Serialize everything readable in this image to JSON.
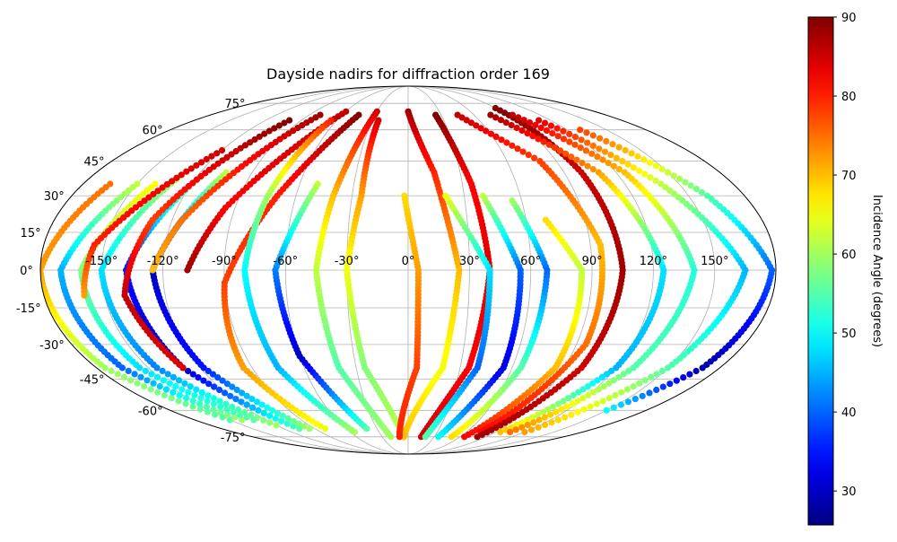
{
  "chart_data": {
    "type": "scatter",
    "projection": "mollweide",
    "title": "Dayside nadirs for diffraction order 169",
    "grid": true,
    "lon_ticks": [
      "-150°",
      "-120°",
      "-90°",
      "-60°",
      "-30°",
      "0°",
      "30°",
      "60°",
      "90°",
      "120°",
      "150°"
    ],
    "lon_tick_values": [
      -150,
      -120,
      -90,
      -60,
      -30,
      0,
      30,
      60,
      90,
      120,
      150
    ],
    "lat_ticks": [
      "75°",
      "60°",
      "45°",
      "30°",
      "15°",
      "0°",
      "-15°",
      "-30°",
      "-45°",
      "-60°",
      "-75°"
    ],
    "lat_tick_values": [
      75,
      60,
      45,
      30,
      15,
      0,
      -15,
      -30,
      -45,
      -60,
      -75
    ],
    "colormap": "jet",
    "colorbar": {
      "label": "Incidence Angle (degrees)",
      "range": [
        25.7,
        90
      ],
      "ticks": [
        "30",
        "40",
        "50",
        "60",
        "70",
        "80",
        "90"
      ],
      "tick_values": [
        30,
        40,
        50,
        60,
        70,
        80,
        90
      ]
    },
    "tracks_note_fields": [
      "longitude",
      "latitude",
      "incidence"
    ],
    "tracks": [
      [
        [
          -165,
          35,
          75
        ],
        [
          -180,
          0,
          72
        ],
        [
          -175,
          -40,
          60
        ],
        [
          -150,
          -65,
          55
        ]
      ],
      [
        [
          -150,
          35,
          62
        ],
        [
          -170,
          0,
          45
        ],
        [
          -165,
          -40,
          40
        ],
        [
          -140,
          -65,
          60
        ]
      ],
      [
        [
          -140,
          35,
          66
        ],
        [
          -160,
          0,
          58
        ],
        [
          -155,
          -40,
          48
        ],
        [
          -130,
          -65,
          55
        ]
      ],
      [
        [
          -130,
          38,
          60
        ],
        [
          -150,
          0,
          48
        ],
        [
          -145,
          -40,
          42
        ],
        [
          -120,
          -68,
          60
        ]
      ],
      [
        [
          -118,
          38,
          58
        ],
        [
          -138,
          0,
          35
        ],
        [
          -130,
          -40,
          30
        ],
        [
          -105,
          -70,
          55
        ]
      ],
      [
        [
          -105,
          40,
          62
        ],
        [
          -125,
          0,
          30
        ],
        [
          -118,
          -40,
          35
        ],
        [
          -95,
          -70,
          60
        ]
      ],
      [
        [
          -120,
          50,
          85
        ],
        [
          -155,
          10,
          80
        ],
        [
          -160,
          -10,
          72
        ]
      ],
      [
        [
          -100,
          65,
          90
        ],
        [
          -130,
          20,
          78
        ],
        [
          -140,
          -10,
          86
        ],
        [
          -130,
          -40,
          84
        ]
      ],
      [
        [
          -80,
          68,
          88
        ],
        [
          -115,
          20,
          75
        ],
        [
          -125,
          0,
          70
        ]
      ],
      [
        [
          -60,
          70,
          86
        ],
        [
          -95,
          25,
          82
        ],
        [
          -108,
          0,
          88
        ]
      ],
      [
        [
          -45,
          68,
          90
        ],
        [
          -70,
          30,
          80
        ],
        [
          -90,
          -5,
          78
        ],
        [
          -95,
          -40,
          72
        ],
        [
          -80,
          -70,
          65
        ]
      ],
      [
        [
          -65,
          65,
          80
        ],
        [
          -75,
          30,
          60
        ],
        [
          -80,
          0,
          50
        ],
        [
          -75,
          -40,
          45
        ],
        [
          -55,
          -72,
          60
        ]
      ],
      [
        [
          -50,
          35,
          62
        ],
        [
          -65,
          0,
          42
        ],
        [
          -60,
          -35,
          30
        ],
        [
          -40,
          -70,
          55
        ]
      ],
      [
        [
          -30,
          70,
          85
        ],
        [
          -40,
          30,
          70
        ],
        [
          -45,
          0,
          62
        ],
        [
          -40,
          -40,
          55
        ],
        [
          -20,
          -75,
          60
        ]
      ],
      [
        [
          -25,
          65,
          85
        ],
        [
          -25,
          30,
          72
        ],
        [
          -30,
          0,
          65
        ],
        [
          -25,
          -40,
          58
        ],
        [
          -5,
          -75,
          62
        ]
      ],
      [
        [
          0,
          70,
          88
        ],
        [
          15,
          40,
          80
        ],
        [
          25,
          0,
          70
        ],
        [
          20,
          -40,
          65
        ],
        [
          -5,
          -75,
          70
        ]
      ],
      [
        [
          25,
          68,
          90
        ],
        [
          35,
          35,
          82
        ],
        [
          40,
          0,
          84
        ],
        [
          35,
          -40,
          82
        ],
        [
          15,
          -75,
          85
        ]
      ],
      [
        [
          -2,
          30,
          68
        ],
        [
          5,
          0,
          72
        ],
        [
          5,
          -40,
          78
        ],
        [
          -10,
          -75,
          80
        ]
      ],
      [
        [
          20,
          30,
          65
        ],
        [
          40,
          0,
          48
        ],
        [
          40,
          -40,
          40
        ],
        [
          20,
          -75,
          55
        ]
      ],
      [
        [
          40,
          30,
          62
        ],
        [
          55,
          0,
          40
        ],
        [
          55,
          -40,
          32
        ],
        [
          35,
          -75,
          50
        ]
      ],
      [
        [
          55,
          28,
          60
        ],
        [
          68,
          0,
          40
        ],
        [
          65,
          -40,
          55
        ],
        [
          50,
          -75,
          68
        ]
      ],
      [
        [
          70,
          20,
          68
        ],
        [
          85,
          0,
          62
        ],
        [
          85,
          -40,
          70
        ],
        [
          65,
          -75,
          82
        ]
      ],
      [
        [
          45,
          68,
          86
        ],
        [
          80,
          45,
          78
        ],
        [
          95,
          10,
          70
        ],
        [
          95,
          -30,
          75
        ],
        [
          75,
          -72,
          82
        ]
      ],
      [
        [
          90,
          72,
          90
        ],
        [
          100,
          40,
          85
        ],
        [
          105,
          0,
          88
        ],
        [
          100,
          -40,
          85
        ],
        [
          80,
          -75,
          88
        ]
      ],
      [
        [
          75,
          68,
          88
        ],
        [
          110,
          40,
          72
        ],
        [
          125,
          0,
          48
        ],
        [
          120,
          -40,
          45
        ],
        [
          95,
          -72,
          70
        ]
      ],
      [
        [
          95,
          68,
          86
        ],
        [
          125,
          40,
          70
        ],
        [
          140,
          0,
          52
        ],
        [
          130,
          -40,
          55
        ],
        [
          105,
          -72,
          75
        ]
      ],
      [
        [
          110,
          65,
          84
        ],
        [
          140,
          35,
          62
        ],
        [
          165,
          0,
          45
        ],
        [
          150,
          -40,
          55
        ],
        [
          120,
          -72,
          72
        ]
      ],
      [
        [
          130,
          60,
          78
        ],
        [
          160,
          30,
          55
        ],
        [
          178,
          0,
          40
        ],
        [
          170,
          -40,
          28
        ],
        [
          150,
          -60,
          50
        ]
      ]
    ]
  }
}
